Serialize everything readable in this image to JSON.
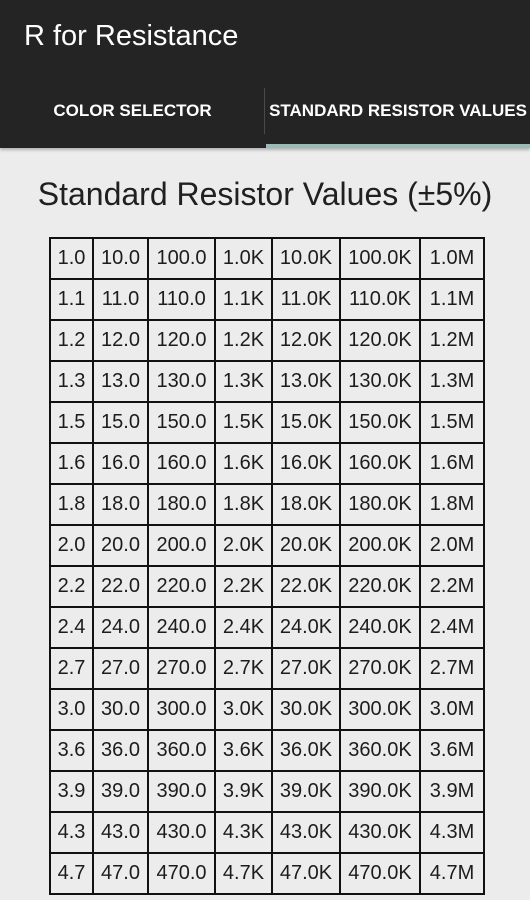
{
  "app": {
    "title": "R for Resistance"
  },
  "tabs": [
    {
      "label": "COLOR SELECTOR",
      "selected": false
    },
    {
      "label": "STANDARD RESISTOR VALUES",
      "selected": true
    }
  ],
  "colors": {
    "action_bar": "#242424",
    "tab_indicator": "#9ab9b7",
    "background": "#ececec"
  },
  "heading": "Standard Resistor Values (±5%)",
  "table": {
    "rows": [
      [
        "1.0",
        "10.0",
        "100.0",
        "1.0K",
        "10.0K",
        "100.0K",
        "1.0M"
      ],
      [
        "1.1",
        "11.0",
        "110.0",
        "1.1K",
        "11.0K",
        "110.0K",
        "1.1M"
      ],
      [
        "1.2",
        "12.0",
        "120.0",
        "1.2K",
        "12.0K",
        "120.0K",
        "1.2M"
      ],
      [
        "1.3",
        "13.0",
        "130.0",
        "1.3K",
        "13.0K",
        "130.0K",
        "1.3M"
      ],
      [
        "1.5",
        "15.0",
        "150.0",
        "1.5K",
        "15.0K",
        "150.0K",
        "1.5M"
      ],
      [
        "1.6",
        "16.0",
        "160.0",
        "1.6K",
        "16.0K",
        "160.0K",
        "1.6M"
      ],
      [
        "1.8",
        "18.0",
        "180.0",
        "1.8K",
        "18.0K",
        "180.0K",
        "1.8M"
      ],
      [
        "2.0",
        "20.0",
        "200.0",
        "2.0K",
        "20.0K",
        "200.0K",
        "2.0M"
      ],
      [
        "2.2",
        "22.0",
        "220.0",
        "2.2K",
        "22.0K",
        "220.0K",
        "2.2M"
      ],
      [
        "2.4",
        "24.0",
        "240.0",
        "2.4K",
        "24.0K",
        "240.0K",
        "2.4M"
      ],
      [
        "2.7",
        "27.0",
        "270.0",
        "2.7K",
        "27.0K",
        "270.0K",
        "2.7M"
      ],
      [
        "3.0",
        "30.0",
        "300.0",
        "3.0K",
        "30.0K",
        "300.0K",
        "3.0M"
      ],
      [
        "3.6",
        "36.0",
        "360.0",
        "3.6K",
        "36.0K",
        "360.0K",
        "3.6M"
      ],
      [
        "3.9",
        "39.0",
        "390.0",
        "3.9K",
        "39.0K",
        "390.0K",
        "3.9M"
      ],
      [
        "4.3",
        "43.0",
        "430.0",
        "4.3K",
        "43.0K",
        "430.0K",
        "4.3M"
      ],
      [
        "4.7",
        "47.0",
        "470.0",
        "4.7K",
        "47.0K",
        "470.0K",
        "4.7M"
      ]
    ]
  }
}
